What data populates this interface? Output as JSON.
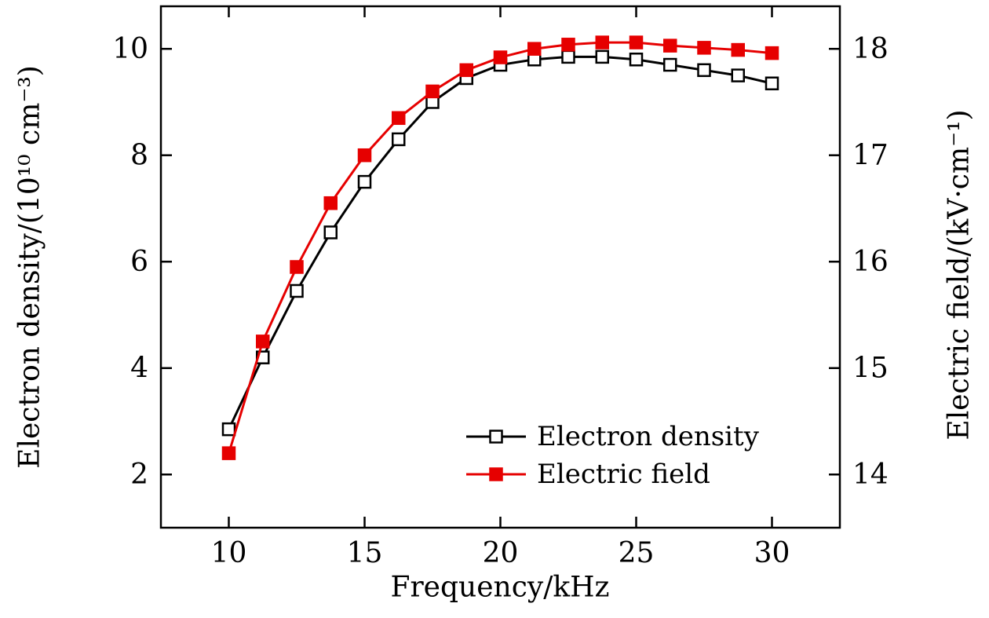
{
  "figure": {
    "background": "#ffffff",
    "frame_color": "#000000"
  },
  "chart_data": {
    "type": "line",
    "title": "",
    "xlabel": "Frequency/kHz",
    "ylabel_left": "Electron density/(10¹⁰ cm⁻³)",
    "ylabel_right": "Electric field/(kV·cm⁻¹)",
    "xlim": [
      7.5,
      32.5
    ],
    "ylim_left": [
      1,
      10.8
    ],
    "ylim_right": [
      13.5,
      18.4
    ],
    "xticks": [
      10,
      15,
      20,
      25,
      30
    ],
    "yticks_left": [
      2,
      4,
      6,
      8,
      10
    ],
    "yticks_right": [
      14,
      15,
      16,
      17,
      18
    ],
    "grid": false,
    "x": [
      10,
      11.25,
      12.5,
      13.75,
      15,
      16.25,
      17.5,
      18.75,
      20,
      21.25,
      22.5,
      23.75,
      25,
      26.25,
      27.5,
      28.75,
      30
    ],
    "series": [
      {
        "name": "Electron density",
        "axis": "left",
        "color": "#000000",
        "marker": "open-square",
        "values": [
          2.85,
          4.2,
          5.45,
          6.55,
          7.5,
          8.3,
          9.0,
          9.45,
          9.7,
          9.8,
          9.85,
          9.85,
          9.8,
          9.7,
          9.6,
          9.5,
          9.35
        ]
      },
      {
        "name": "Electric field",
        "axis": "right",
        "color": "#e60000",
        "marker": "filled-square",
        "values": [
          14.2,
          15.25,
          15.95,
          16.55,
          17.0,
          17.35,
          17.6,
          17.8,
          17.92,
          18.0,
          18.04,
          18.06,
          18.06,
          18.03,
          18.01,
          17.99,
          17.96
        ]
      }
    ],
    "legend": {
      "position": "inside-bottom-right",
      "entries": [
        "Electron density",
        "Electric field"
      ]
    }
  }
}
